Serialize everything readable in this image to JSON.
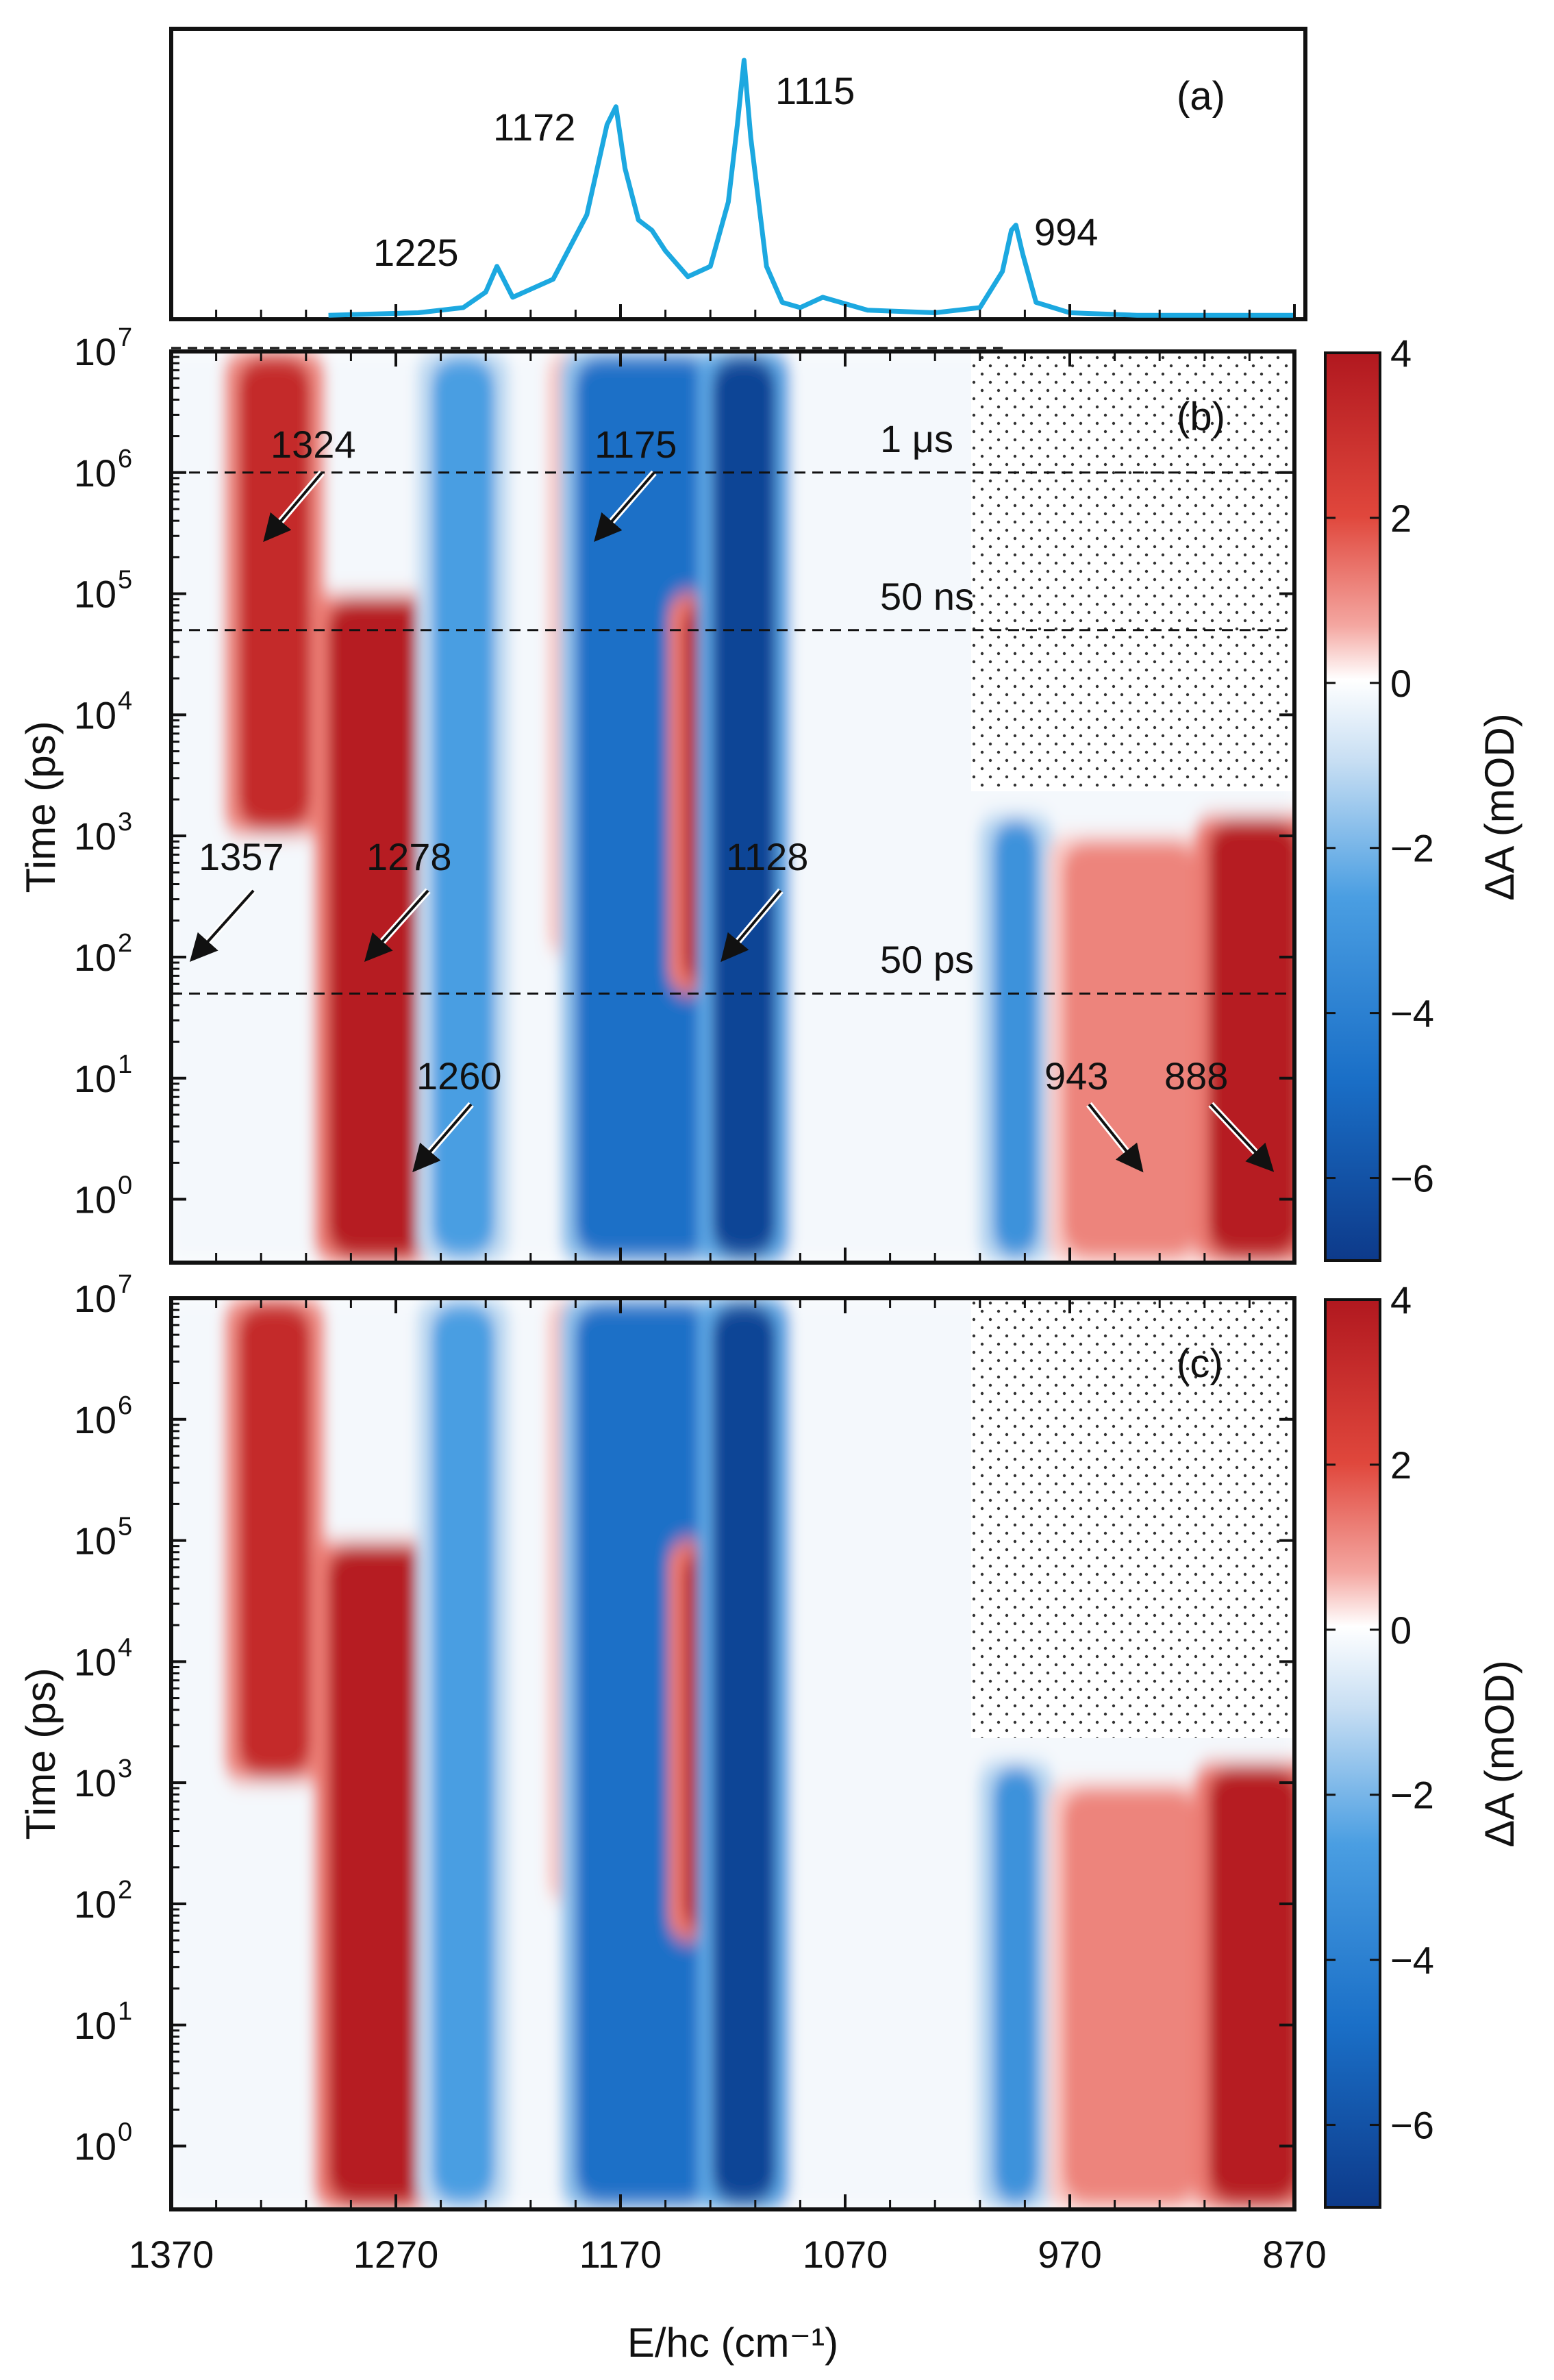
{
  "chart_data": [
    {
      "panel": "(a)",
      "type": "line",
      "description_label": "(a)",
      "x": [
        1300,
        1260,
        1240,
        1230,
        1225,
        1218,
        1200,
        1185,
        1176,
        1172,
        1168,
        1162,
        1156,
        1150,
        1140,
        1130,
        1122,
        1118,
        1115,
        1112,
        1105,
        1098,
        1090,
        1080,
        1060,
        1030,
        1010,
        1000,
        996,
        994,
        991,
        985,
        970,
        940,
        900,
        870
      ],
      "y": [
        0.01,
        0.02,
        0.04,
        0.1,
        0.2,
        0.08,
        0.15,
        0.4,
        0.75,
        0.82,
        0.58,
        0.38,
        0.34,
        0.26,
        0.16,
        0.2,
        0.45,
        0.75,
        1.0,
        0.7,
        0.2,
        0.06,
        0.04,
        0.08,
        0.03,
        0.02,
        0.04,
        0.18,
        0.34,
        0.36,
        0.25,
        0.06,
        0.02,
        0.01,
        0.01,
        0.01
      ],
      "peak_labels": [
        "1225",
        "1172",
        "1115",
        "994"
      ],
      "xlim": [
        1370,
        870
      ],
      "color": "#1ca8e0"
    },
    {
      "panel": "(b)",
      "type": "heatmap",
      "label": "(b)",
      "x_range": [
        1370,
        870
      ],
      "y_scale": "log",
      "ylim": [
        0.3,
        10000000
      ],
      "ylabel": "Time (ps)",
      "y_tick_labels": [
        "10",
        "10",
        "10",
        "10",
        "10",
        "10",
        "10",
        "10"
      ],
      "y_tick_exponents": [
        "0",
        "1",
        "2",
        "3",
        "4",
        "5",
        "6",
        "7"
      ],
      "y_tick_values": [
        1,
        10,
        100,
        1000,
        10000,
        100000,
        1000000,
        10000000
      ],
      "time_markers": [
        {
          "label": "1 μs",
          "value_ps": 1000000
        },
        {
          "label": "50 ns",
          "value_ps": 50000
        },
        {
          "label": "50 ps",
          "value_ps": 50
        }
      ],
      "peak_annotations": [
        "1324",
        "1175",
        "1357",
        "1278",
        "1128",
        "1260",
        "943",
        "888"
      ],
      "colorbar": {
        "label": "ΔA (mOD)",
        "range": [
          -7,
          4
        ],
        "ticks": [
          "4",
          "2",
          "0",
          "−2",
          "−4",
          "−6"
        ],
        "tick_values": [
          4,
          2,
          0,
          -2,
          -4,
          -6
        ]
      },
      "features": [
        {
          "center": 1324,
          "sign": "positive",
          "t_range": [
            1000,
            10000000
          ],
          "amp": 3.2
        },
        {
          "center": 1278,
          "sign": "positive",
          "t_range": [
            0.3,
            100000
          ],
          "amp": 3.8
        },
        {
          "center": 1240,
          "sign": "negative",
          "t_range": [
            0.3,
            10000000
          ],
          "amp": -2.5
        },
        {
          "center": 1186,
          "sign": "positive",
          "t_range": [
            100,
            10000000
          ],
          "amp": 1.2
        },
        {
          "center": 1160,
          "sign": "negative",
          "t_range": [
            0.3,
            10000000
          ],
          "amp": -4.5
        },
        {
          "center": 1128,
          "sign": "positive",
          "t_range": [
            50,
            100000
          ],
          "amp": 3.8
        },
        {
          "center": 1115,
          "sign": "negative",
          "t_range": [
            0.3,
            10000000
          ],
          "amp": -6.5
        },
        {
          "center": 994,
          "sign": "negative",
          "t_range": [
            0.3,
            1500
          ],
          "amp": -3.0
        },
        {
          "center": 943,
          "sign": "positive",
          "t_range": [
            0.3,
            1000
          ],
          "amp": 1.2
        },
        {
          "center": 888,
          "sign": "positive",
          "t_range": [
            0.3,
            1500
          ],
          "amp": 3.8
        }
      ]
    },
    {
      "panel": "(c)",
      "type": "heatmap",
      "label": "(c)",
      "x_range": [
        1370,
        870
      ],
      "x_tick_labels": [
        "1370",
        "1270",
        "1170",
        "1070",
        "970",
        "870"
      ],
      "x_tick_values": [
        1370,
        1270,
        1170,
        1070,
        970,
        870
      ],
      "xlabel": "E/hc (cm⁻¹)",
      "ylabel": "Time (ps)",
      "y_tick_labels": [
        "10",
        "10",
        "10",
        "10",
        "10",
        "10",
        "10",
        "10"
      ],
      "y_tick_exponents": [
        "0",
        "1",
        "2",
        "3",
        "4",
        "5",
        "6",
        "7"
      ],
      "colorbar": {
        "label": "ΔA (mOD)",
        "range": [
          -7,
          4
        ],
        "ticks": [
          "4",
          "2",
          "0",
          "−2",
          "−4",
          "−6"
        ],
        "tick_values": [
          4,
          2,
          0,
          -2,
          -4,
          -6
        ]
      }
    }
  ]
}
